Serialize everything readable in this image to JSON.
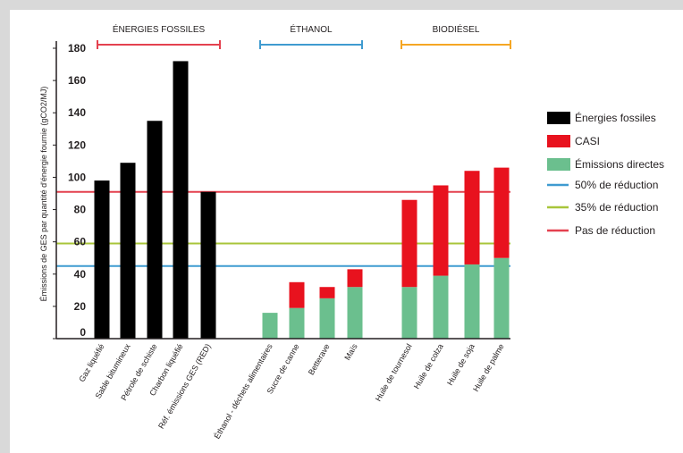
{
  "chart_data": {
    "type": "bar",
    "stacked": true,
    "ylabel": "Émissions de GES par quantité d'énergie fournie (gCO2/MJ)",
    "ylim": [
      0,
      180
    ],
    "yticks": [
      0,
      20,
      40,
      60,
      80,
      100,
      120,
      140,
      160,
      180
    ],
    "groups": [
      {
        "label": "ÉNERGIES FOSSILES",
        "color": "#e4414f",
        "categories": [
          "Gaz liquéfié",
          "Sable bitumineux",
          "Pétrole de schiste",
          "Charbon liquéfié",
          "Réf. émissions GES (RED)"
        ]
      },
      {
        "label": "ÉTHANOL",
        "color": "#3f9bd0",
        "categories": [
          "Éthanol - déchets alimentaires",
          "Sucre de canne",
          "Betterave",
          "Maïs"
        ]
      },
      {
        "label": "BIODIÉSEL",
        "color": "#f5a623",
        "categories": [
          "Huile de tournesol",
          "Huile de colza",
          "Huile de soja",
          "Huile de palme"
        ]
      }
    ],
    "categories": [
      "Gaz liquéfié",
      "Sable bitumineux",
      "Pétrole de schiste",
      "Charbon liquéfié",
      "Réf. émissions GES (RED)",
      "Éthanol - déchets alimentaires",
      "Sucre de canne",
      "Betterave",
      "Maïs",
      "Huile de tournesol",
      "Huile de colza",
      "Huile de soja",
      "Huile de palme"
    ],
    "series": [
      {
        "name": "Énergies fossiles",
        "color": "#000000",
        "values": [
          98,
          109,
          135,
          172,
          91,
          0,
          0,
          0,
          0,
          0,
          0,
          0,
          0
        ]
      },
      {
        "name": "Émissions directes",
        "color": "#6bbf8e",
        "values": [
          0,
          0,
          0,
          0,
          0,
          16,
          19,
          25,
          32,
          32,
          39,
          46,
          50
        ]
      },
      {
        "name": "CASI",
        "color": "#e8121e",
        "values": [
          0,
          0,
          0,
          0,
          0,
          0,
          16,
          7,
          11,
          54,
          56,
          58,
          56
        ]
      }
    ],
    "reference_lines": [
      {
        "name": "50% de réduction",
        "value": 45,
        "color": "#3f9bd0"
      },
      {
        "name": "35% de réduction",
        "value": 59,
        "color": "#a8c53a"
      },
      {
        "name": "Pas de réduction",
        "value": 91,
        "color": "#e4414f"
      }
    ],
    "legend": {
      "placement": "right",
      "items": [
        {
          "label": "Énergies fossiles",
          "kind": "box",
          "color": "#000000"
        },
        {
          "label": "CASI",
          "kind": "box",
          "color": "#e8121e"
        },
        {
          "label": "Émissions directes",
          "kind": "box",
          "color": "#6bbf8e"
        },
        {
          "label": "50% de réduction",
          "kind": "line",
          "color": "#3f9bd0"
        },
        {
          "label": "35% de réduction",
          "kind": "line",
          "color": "#a8c53a"
        },
        {
          "label": "Pas de réduction",
          "kind": "line",
          "color": "#e4414f"
        }
      ]
    }
  }
}
